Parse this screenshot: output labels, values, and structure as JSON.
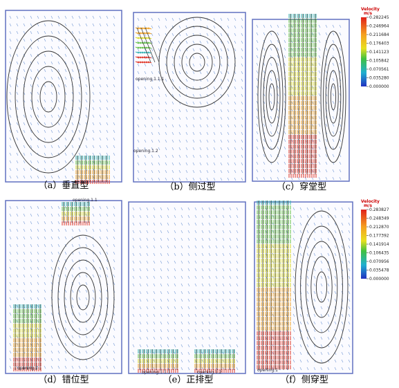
{
  "panels": [
    {
      "caption": "（a）垂直型",
      "labels": []
    },
    {
      "caption": "（b）侧过型",
      "labels": [
        "opening.1.1.1",
        "opening.1.2"
      ]
    },
    {
      "caption": "（c）穿堂型",
      "labels": []
    },
    {
      "caption": "（d）错位型",
      "labels": [
        "opening.1.1",
        "opening.1"
      ]
    },
    {
      "caption": "（e）正排型",
      "labels": [
        "opening.1.1.1",
        "opening.1.2"
      ]
    },
    {
      "caption": "（f）侧穿型",
      "labels": [
        "opening.1"
      ]
    }
  ],
  "legends": [
    {
      "title": "Velocity",
      "unit": "m/s",
      "ticks": [
        "0.282245",
        "0.246964",
        "0.211684",
        "0.176403",
        "0.141123",
        "0.105842",
        "0.070561",
        "0.035280",
        "0.000000"
      ]
    },
    {
      "title": "Velocity",
      "unit": "m/s",
      "ticks": [
        "0.283827",
        "0.248349",
        "0.212870",
        "0.177392",
        "0.141914",
        "0.106435",
        "0.070956",
        "0.035478",
        "0.000000"
      ]
    }
  ]
}
